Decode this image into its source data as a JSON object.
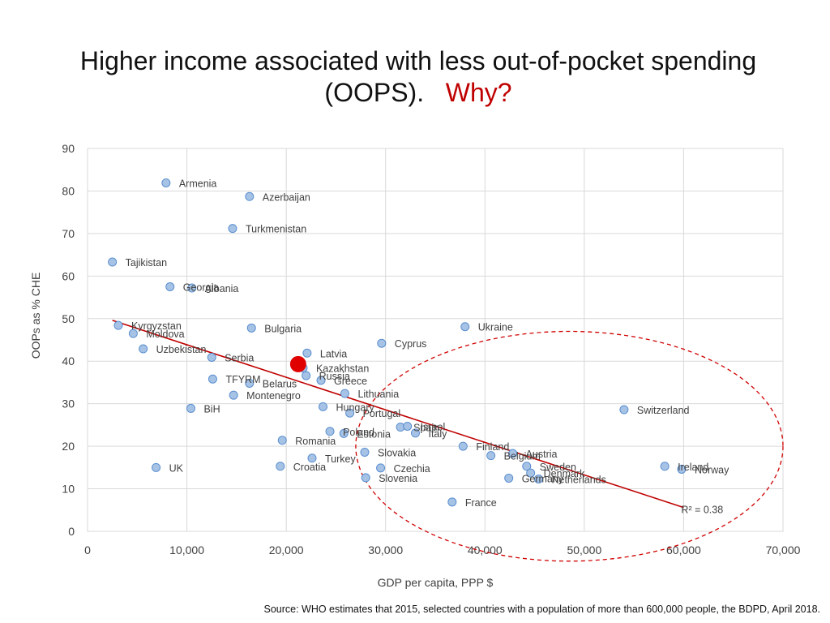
{
  "slide": {
    "title_line1": "Higher income associated with less out-of-pocket spending",
    "title_line2_main": "(OOPS).",
    "title_line2_accent": "Why?",
    "source": "Source: WHO estimates that 2015, selected countries with a population of more than 600,000 people, the BDPD, April 2018."
  },
  "colors": {
    "accent": "#c00000",
    "point": "#a6c3e6",
    "point_stroke": "#5b8fcf",
    "trendline": "#c00000",
    "highlight": "#e00000",
    "ellipse": "#d00000",
    "grid": "#d9d9d9",
    "text": "#404040"
  },
  "chart_data": {
    "type": "scatter",
    "xlabel": "GDP per capita, PPP $",
    "ylabel": "OOPs as % CHE",
    "xlim": [
      0,
      70000
    ],
    "ylim": [
      0,
      90
    ],
    "x_ticks": [
      0,
      10000,
      20000,
      30000,
      40000,
      50000,
      60000,
      70000
    ],
    "x_tick_labels": [
      "0",
      "10,000",
      "20,000",
      "30,000",
      "40,000",
      "50,000",
      "60,000",
      "70,000"
    ],
    "y_ticks": [
      0,
      10,
      20,
      30,
      40,
      50,
      60,
      70,
      80,
      90
    ],
    "y_tick_labels": [
      "0",
      "10",
      "20",
      "30",
      "40",
      "50",
      "60",
      "70",
      "80",
      "90"
    ],
    "grid": true,
    "r_squared_label": "R² = 0.38",
    "trendline": {
      "x": [
        2500,
        60000
      ],
      "y": [
        49.6,
        5.6
      ]
    },
    "highlight_point": {
      "x": 21200,
      "y": 39.3
    },
    "ellipse": {
      "cx": 48500,
      "cy": 20,
      "rx": 21500,
      "ry": 27
    },
    "points": [
      {
        "label": "Armenia",
        "x": 7900,
        "y": 81.9
      },
      {
        "label": "Azerbaijan",
        "x": 16300,
        "y": 78.7
      },
      {
        "label": "Turkmenistan",
        "x": 14600,
        "y": 71.2
      },
      {
        "label": "Tajikistan",
        "x": 2500,
        "y": 63.3
      },
      {
        "label": "Georgia",
        "x": 8300,
        "y": 57.5
      },
      {
        "label": "Albania",
        "x": 10500,
        "y": 57.2
      },
      {
        "label": "Kyrgyzstan",
        "x": 3100,
        "y": 48.4
      },
      {
        "label": "Moldova",
        "x": 4600,
        "y": 46.5
      },
      {
        "label": "Uzbekistan",
        "x": 5600,
        "y": 42.9
      },
      {
        "label": "Bulgaria",
        "x": 16500,
        "y": 47.8
      },
      {
        "label": "Ukraine",
        "x": 38000,
        "y": 48.1
      },
      {
        "label": "Cyprus",
        "x": 29600,
        "y": 44.2
      },
      {
        "label": "Latvia",
        "x": 22100,
        "y": 41.9
      },
      {
        "label": "Serbia",
        "x": 12500,
        "y": 40.9
      },
      {
        "label": "Kazakhstan",
        "x": 21700,
        "y": 38.4
      },
      {
        "label": "Russia",
        "x": 22000,
        "y": 36.6
      },
      {
        "label": "Greece",
        "x": 23500,
        "y": 35.5
      },
      {
        "label": "TFYRM",
        "x": 12600,
        "y": 35.8
      },
      {
        "label": "Belarus",
        "x": 16300,
        "y": 34.8
      },
      {
        "label": "Lithuania",
        "x": 25900,
        "y": 32.4
      },
      {
        "label": "Montenegro",
        "x": 14700,
        "y": 32.0
      },
      {
        "label": "Switzerland",
        "x": 54000,
        "y": 28.6
      },
      {
        "label": "BiH",
        "x": 10400,
        "y": 28.9
      },
      {
        "label": "Hungary",
        "x": 23700,
        "y": 29.3
      },
      {
        "label": "Portugal",
        "x": 26400,
        "y": 27.8
      },
      {
        "label": "Spain",
        "x": 31500,
        "y": 24.5
      },
      {
        "label": "Israel",
        "x": 32200,
        "y": 24.7
      },
      {
        "label": "Poland",
        "x": 24400,
        "y": 23.5
      },
      {
        "label": "Estonia",
        "x": 25800,
        "y": 23.0
      },
      {
        "label": "Italy",
        "x": 33000,
        "y": 23.1
      },
      {
        "label": "Romania",
        "x": 19600,
        "y": 21.4
      },
      {
        "label": "Finland",
        "x": 37800,
        "y": 20.0
      },
      {
        "label": "Belgium",
        "x": 40600,
        "y": 17.8
      },
      {
        "label": "Austria",
        "x": 42800,
        "y": 18.3
      },
      {
        "label": "Slovakia",
        "x": 27900,
        "y": 18.6
      },
      {
        "label": "Turkey",
        "x": 22600,
        "y": 17.2
      },
      {
        "label": "Sweden",
        "x": 44200,
        "y": 15.3
      },
      {
        "label": "Denmark",
        "x": 44600,
        "y": 13.7
      },
      {
        "label": "Netherlands",
        "x": 45400,
        "y": 12.3
      },
      {
        "label": "Germany",
        "x": 42400,
        "y": 12.5
      },
      {
        "label": "Ireland",
        "x": 58100,
        "y": 15.3
      },
      {
        "label": "Norway",
        "x": 59800,
        "y": 14.6
      },
      {
        "label": "UK",
        "x": 6900,
        "y": 15.0
      },
      {
        "label": "Croatia",
        "x": 19400,
        "y": 15.3
      },
      {
        "label": "Czechia",
        "x": 29500,
        "y": 14.9
      },
      {
        "label": "Slovenia",
        "x": 28000,
        "y": 12.6
      },
      {
        "label": "France",
        "x": 36700,
        "y": 6.9
      }
    ]
  }
}
